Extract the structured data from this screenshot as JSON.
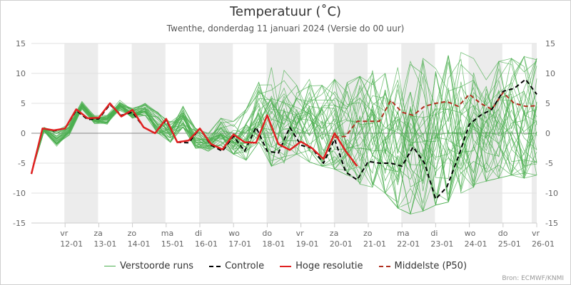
{
  "chart_data": {
    "type": "line",
    "title": "Temperatuur (˚C)",
    "subtitle": "Twenthe, donderdag 11 januari 2024 (Versie do 00 uur)",
    "credits": "Bron: ECMWF/KNMI",
    "xlabel": "",
    "ylabel": "",
    "ylim": [
      -15,
      15
    ],
    "yticks": [
      15,
      10,
      5,
      0,
      -5,
      -10,
      -15
    ],
    "y_axes": "left and right",
    "grid": "horizontal",
    "weekend_shading": "alternate days",
    "legend_position": "bottom",
    "x_unit": "days since 11-01 00 uur",
    "x_range": [
      0,
      15
    ],
    "days": [
      {
        "weekday": "vr",
        "date": "12-01"
      },
      {
        "weekday": "za",
        "date": "13-01"
      },
      {
        "weekday": "zo",
        "date": "14-01"
      },
      {
        "weekday": "ma",
        "date": "15-01"
      },
      {
        "weekday": "di",
        "date": "16-01"
      },
      {
        "weekday": "wo",
        "date": "17-01"
      },
      {
        "weekday": "do",
        "date": "18-01"
      },
      {
        "weekday": "vr",
        "date": "19-01"
      },
      {
        "weekday": "za",
        "date": "20-01"
      },
      {
        "weekday": "zo",
        "date": "21-01"
      },
      {
        "weekday": "ma",
        "date": "22-01"
      },
      {
        "weekday": "di",
        "date": "23-01"
      },
      {
        "weekday": "wo",
        "date": "24-01"
      },
      {
        "weekday": "do",
        "date": "25-01"
      },
      {
        "weekday": "vr",
        "date": "26-01"
      }
    ],
    "series": [
      {
        "name": "Verstoorde runs",
        "color": "#4caf50",
        "style": "thin",
        "members": 50,
        "spread_min": [
          -6.8,
          0.1,
          -2.8,
          -0.5,
          4.0,
          1.5,
          1.5,
          3.8,
          2.5,
          3.0,
          0.0,
          -1.5,
          1.0,
          -2.5,
          -3.0,
          -2.0,
          -3.5,
          -4.5,
          -1.5,
          -5.5,
          -5.0,
          -3.5,
          -4.8,
          -5.5,
          -6.0,
          -7.0,
          -8.5,
          -9.0,
          -10.0,
          -12.5,
          -13.5,
          -13.0,
          -12.0,
          -11.5,
          -10.0,
          -9.0,
          -8.0,
          -7.5,
          -7.0,
          -7.5,
          -7.0
        ],
        "spread_max": [
          -6.5,
          1.2,
          1.0,
          1.8,
          5.4,
          3.0,
          3.2,
          5.5,
          4.3,
          5.0,
          3.5,
          2.0,
          4.5,
          0.8,
          0.0,
          2.5,
          2.0,
          4.0,
          8.5,
          11.0,
          10.5,
          8.0,
          9.0,
          8.0,
          9.0,
          8.5,
          9.5,
          10.5,
          10.0,
          11.0,
          12.0,
          12.5,
          12.0,
          13.0,
          13.5,
          12.5,
          13.0,
          12.0,
          12.5,
          12.8,
          12.5
        ],
        "sample_lines": 12
      },
      {
        "name": "Controle",
        "color": "#000000",
        "style": "dashed",
        "x": [
          0,
          0.33,
          0.67,
          1.0,
          1.33,
          1.67,
          2.0,
          2.33,
          2.67,
          3.0,
          3.33,
          3.67,
          4.0,
          4.33,
          4.67,
          5.0,
          5.33,
          5.67,
          6.0,
          6.33,
          6.67,
          7.0,
          7.33,
          7.67,
          8.0,
          8.33,
          8.67,
          9.0,
          9.33,
          9.67,
          10.0,
          10.33,
          10.67,
          11.0,
          11.33,
          11.67,
          12.0,
          12.33,
          12.67,
          13.0,
          13.33,
          13.67,
          14.0,
          14.33,
          14.67,
          15.0
        ],
        "values": [
          -6.8,
          0.8,
          0.4,
          0.8,
          3.8,
          2.3,
          2.4,
          4.8,
          3.0,
          3.5,
          1.0,
          0.0,
          2.2,
          -1.5,
          -1.6,
          0.8,
          -2.0,
          -3.0,
          -0.5,
          -3.0,
          1.0,
          -3.0,
          -3.3,
          1.0,
          -2.0,
          -2.5,
          -5.0,
          -1.0,
          -6.5,
          -7.8,
          -4.7,
          -5.0,
          -5.0,
          -5.5,
          -2.3,
          -5.0,
          -11.0,
          -9.0,
          -4.0,
          1.5,
          3.0,
          4.0,
          7.0,
          7.5,
          9.0,
          6.5
        ],
        "note": "tail points from x≈13.33"
      },
      {
        "name": "Hoge resolutie",
        "color": "#e02020",
        "style": "solid",
        "x": [
          0,
          0.33,
          0.67,
          1.0,
          1.33,
          1.67,
          2.0,
          2.33,
          2.67,
          3.0,
          3.33,
          3.67,
          4.0,
          4.33,
          4.67,
          5.0,
          5.33,
          5.67,
          6.0,
          6.33,
          6.67,
          7.0,
          7.33,
          7.67,
          8.0,
          8.33,
          8.67,
          9.0,
          9.33,
          9.67,
          10.0
        ],
        "values": [
          -6.8,
          0.8,
          0.5,
          0.8,
          4.0,
          2.5,
          2.6,
          5.0,
          2.8,
          3.9,
          1.0,
          0.0,
          2.4,
          -1.5,
          -1.2,
          0.8,
          -1.8,
          -2.7,
          -0.2,
          -1.5,
          -1.6,
          3.0,
          -1.8,
          -2.8,
          -1.4,
          -2.5,
          -4.3,
          0.0,
          -3.0,
          -5.5,
          null
        ]
      },
      {
        "name": "Middelste (P50)",
        "color": "#b03020",
        "style": "dashed",
        "x": [
          9.0,
          9.33,
          9.67,
          10.0,
          10.33,
          10.67,
          11.0,
          11.33,
          11.67,
          12.0,
          12.33,
          12.67,
          13.0,
          13.33,
          13.67,
          14.0,
          14.33,
          14.67,
          15.0
        ],
        "values": [
          -0.7,
          -0.5,
          2.0,
          2.0,
          2.0,
          5.5,
          3.5,
          3.0,
          4.5,
          5.0,
          5.3,
          4.5,
          6.5,
          5.0,
          4.0,
          6.8,
          5.0,
          4.5,
          4.6
        ]
      }
    ]
  },
  "legend": [
    {
      "label": "Verstoorde runs",
      "color": "#4caf50",
      "style": "solid-thin"
    },
    {
      "label": "Controle",
      "color": "#000000",
      "style": "dashed"
    },
    {
      "label": "Hoge resolutie",
      "color": "#e02020",
      "style": "solid"
    },
    {
      "label": "Middelste (P50)",
      "color": "#b03020",
      "style": "dashed"
    }
  ]
}
